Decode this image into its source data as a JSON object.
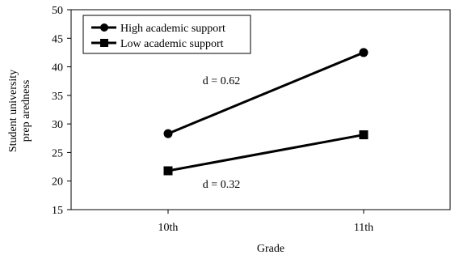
{
  "chart_data": {
    "type": "line",
    "xlabel": "Grade",
    "ylabel_lines": [
      "Student university",
      "prep aredness"
    ],
    "categories": [
      "10th",
      "11th"
    ],
    "ylim": [
      15,
      50
    ],
    "yticks": [
      15,
      20,
      25,
      30,
      35,
      40,
      45,
      50
    ],
    "grid": false,
    "legend_position": "top-left",
    "series": [
      {
        "name": "High academic support",
        "marker": "circle",
        "color": "#000000",
        "values": [
          28.3,
          42.5
        ]
      },
      {
        "name": "Low academic support",
        "marker": "square",
        "color": "#000000",
        "values": [
          21.8,
          28.1
        ]
      }
    ],
    "annotations": [
      {
        "text": "d = 0.62",
        "x_pos": 0.5,
        "y": 37.7
      },
      {
        "text": "d = 0.32",
        "x_pos": 0.5,
        "y": 19.5
      }
    ]
  }
}
